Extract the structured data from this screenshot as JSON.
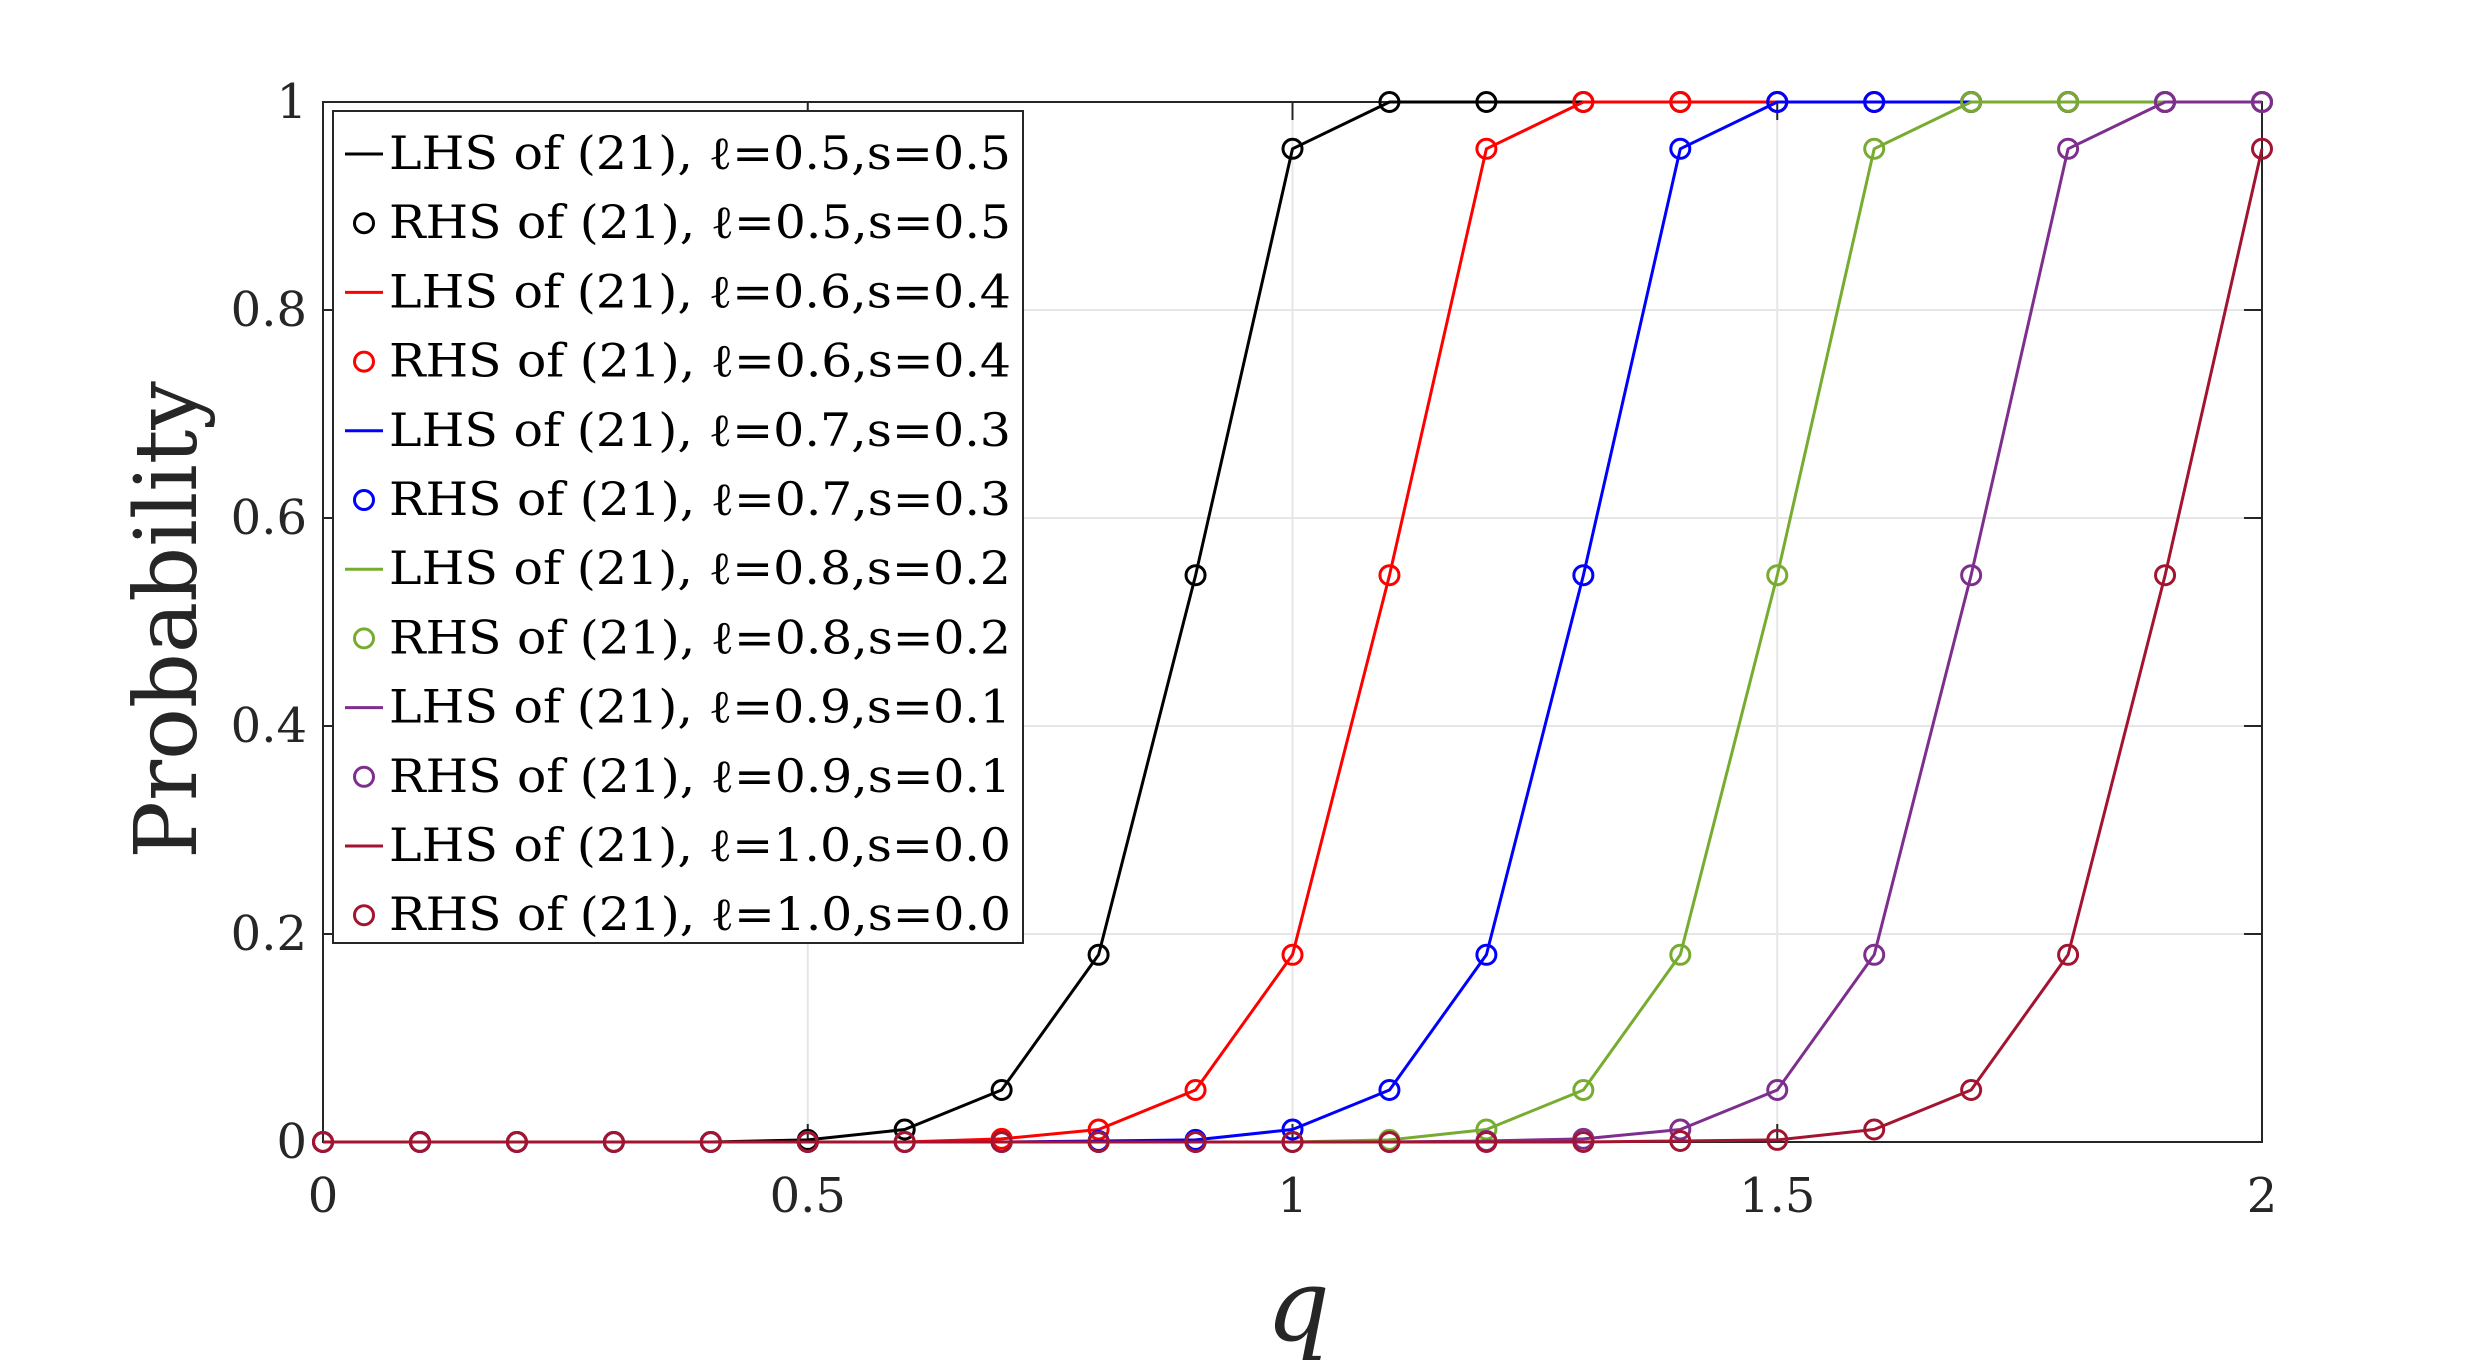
{
  "chart_data": {
    "type": "line",
    "xlabel": "q",
    "ylabel": "Probability",
    "xlim": [
      0,
      2
    ],
    "ylim": [
      0,
      1
    ],
    "xticks": [
      0,
      0.5,
      1,
      1.5,
      2
    ],
    "xtick_labels": [
      "0",
      "0.5",
      "1",
      "1.5",
      "2"
    ],
    "yticks": [
      0,
      0.2,
      0.4,
      0.6,
      0.8,
      1
    ],
    "ytick_labels": [
      "0",
      "0.2",
      "0.4",
      "0.6",
      "0.8",
      "1"
    ],
    "grid": true,
    "legend_position": "top-left",
    "x": [
      0,
      0.1,
      0.2,
      0.3,
      0.4,
      0.5,
      0.6,
      0.7,
      0.8,
      0.9,
      1.0,
      1.1,
      1.2,
      1.3,
      1.4,
      1.5,
      1.6,
      1.7,
      1.8,
      1.9,
      2.0
    ],
    "series": [
      {
        "name": "LHS of (21), ℓ=0.5,s=0.5",
        "style": "line",
        "color": "#000000",
        "values": [
          0,
          0,
          0,
          0,
          0,
          0.002,
          0.012,
          0.05,
          0.18,
          0.545,
          0.955,
          1,
          1,
          1,
          1,
          1,
          1,
          1,
          1,
          1,
          1
        ]
      },
      {
        "name": "RHS of (21), ℓ=0.5,s=0.5",
        "style": "marker",
        "color": "#000000",
        "values": [
          0,
          0,
          0,
          0,
          0,
          0.002,
          0.012,
          0.05,
          0.18,
          0.545,
          0.955,
          1,
          1,
          1,
          1,
          1,
          1,
          1,
          1,
          1,
          1
        ]
      },
      {
        "name": "LHS of (21), ℓ=0.6,s=0.4",
        "style": "line",
        "color": "#ff0000",
        "values": [
          0,
          0,
          0,
          0,
          0,
          0,
          0,
          0.003,
          0.012,
          0.05,
          0.18,
          0.545,
          0.955,
          1,
          1,
          1,
          1,
          1,
          1,
          1,
          1
        ]
      },
      {
        "name": "RHS of (21), ℓ=0.6,s=0.4",
        "style": "marker",
        "color": "#ff0000",
        "values": [
          0,
          0,
          0,
          0,
          0,
          0,
          0,
          0.003,
          0.012,
          0.05,
          0.18,
          0.545,
          0.955,
          1,
          1,
          1,
          1,
          1,
          1,
          1,
          1
        ]
      },
      {
        "name": "LHS of (21), ℓ=0.7,s=0.3",
        "style": "line",
        "color": "#0000ff",
        "values": [
          0,
          0,
          0,
          0,
          0,
          0,
          0,
          0,
          0.001,
          0.002,
          0.012,
          0.05,
          0.18,
          0.545,
          0.955,
          1,
          1,
          1,
          1,
          1,
          1
        ]
      },
      {
        "name": "RHS of (21), ℓ=0.7,s=0.3",
        "style": "marker",
        "color": "#0000ff",
        "values": [
          0,
          0,
          0,
          0,
          0,
          0,
          0,
          0,
          0.001,
          0.002,
          0.012,
          0.05,
          0.18,
          0.545,
          0.955,
          1,
          1,
          1,
          1,
          1,
          1
        ]
      },
      {
        "name": "LHS of (21), ℓ=0.8,s=0.2",
        "style": "line",
        "color": "#77ac30",
        "values": [
          0,
          0,
          0,
          0,
          0,
          0,
          0,
          0,
          0,
          0,
          0,
          0.002,
          0.012,
          0.05,
          0.18,
          0.545,
          0.955,
          1,
          1,
          1,
          1
        ]
      },
      {
        "name": "RHS of (21), ℓ=0.8,s=0.2",
        "style": "marker",
        "color": "#77ac30",
        "values": [
          0,
          0,
          0,
          0,
          0,
          0,
          0,
          0,
          0,
          0,
          0,
          0.002,
          0.012,
          0.05,
          0.18,
          0.545,
          0.955,
          1,
          1,
          1,
          1
        ]
      },
      {
        "name": "LHS of (21), ℓ=0.9,s=0.1",
        "style": "line",
        "color": "#7e2f8e",
        "values": [
          0,
          0,
          0,
          0,
          0,
          0,
          0,
          0,
          0,
          0,
          0,
          0,
          0.001,
          0.003,
          0.012,
          0.05,
          0.18,
          0.545,
          0.955,
          1,
          1
        ]
      },
      {
        "name": "RHS of (21), ℓ=0.9,s=0.1",
        "style": "marker",
        "color": "#7e2f8e",
        "values": [
          0,
          0,
          0,
          0,
          0,
          0,
          0,
          0,
          0,
          0,
          0,
          0,
          0.001,
          0.003,
          0.012,
          0.05,
          0.18,
          0.545,
          0.955,
          1,
          1
        ]
      },
      {
        "name": "LHS of (21), ℓ=1.0,s=0.0",
        "style": "line",
        "color": "#a2142f",
        "values": [
          0,
          0,
          0,
          0,
          0,
          0,
          0,
          0,
          0,
          0,
          0,
          0,
          0,
          0,
          0.001,
          0.002,
          0.012,
          0.05,
          0.18,
          0.545,
          0.955
        ]
      },
      {
        "name": "RHS of (21), ℓ=1.0,s=0.0",
        "style": "marker",
        "color": "#a2142f",
        "values": [
          0,
          0,
          0,
          0,
          0,
          0,
          0,
          0,
          0,
          0,
          0,
          0,
          0,
          0,
          0.001,
          0.002,
          0.012,
          0.05,
          0.18,
          0.545,
          0.955
        ]
      }
    ]
  }
}
